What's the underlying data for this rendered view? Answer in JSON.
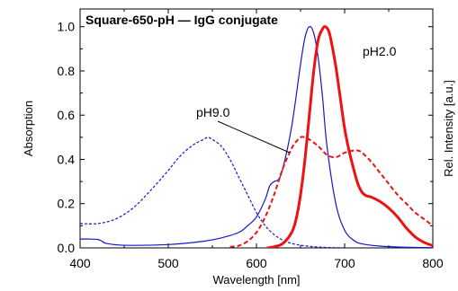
{
  "chart_data": {
    "type": "line",
    "title": "Square-650-pH — IgG conjugate",
    "xlabel": "Wavelength [nm]",
    "ylabel": "Absorption",
    "ylabel_right": "Rel. Intensity [a.u.]",
    "xlim": [
      400,
      800
    ],
    "ylim": [
      0,
      1.08
    ],
    "x_ticks": [
      400,
      500,
      600,
      700,
      800
    ],
    "x_tick_labels": [
      "400",
      "500",
      "600",
      "700",
      "800"
    ],
    "y_ticks": [
      0,
      0.2,
      0.4,
      0.6,
      0.8,
      1.0
    ],
    "y_tick_labels": [
      "0.0",
      "0.2",
      "0.4",
      "0.6",
      "0.8",
      "1.0"
    ],
    "grid": false,
    "annotations": [
      {
        "text": "pH2.0",
        "x": 712,
        "y": 0.955
      },
      {
        "text": "pH9.0",
        "x": 550,
        "y": 0.615
      }
    ],
    "colors": {
      "blue": "#1515cc",
      "red": "#ee1111"
    },
    "series": [
      {
        "key": "abs_ph9",
        "color": "#1515cc",
        "style": "dashed",
        "x": [
          400,
          420,
          440,
          460,
          480,
          500,
          510,
          520,
          530,
          540,
          545,
          550,
          560,
          570,
          580,
          590,
          600,
          610,
          620,
          630,
          640,
          650,
          660,
          670,
          680,
          700
        ],
        "y": [
          0.11,
          0.11,
          0.13,
          0.18,
          0.26,
          0.35,
          0.4,
          0.44,
          0.47,
          0.49,
          0.5,
          0.49,
          0.46,
          0.4,
          0.32,
          0.24,
          0.16,
          0.1,
          0.06,
          0.035,
          0.02,
          0.012,
          0.007,
          0.004,
          0.002,
          0.0
        ]
      },
      {
        "key": "abs_ph2",
        "color": "#1515cc",
        "style": "solid",
        "x": [
          400,
          410,
          420,
          425,
          430,
          450,
          500,
          540,
          560,
          580,
          590,
          600,
          610,
          615,
          620,
          625,
          630,
          640,
          650,
          655,
          660,
          665,
          670,
          675,
          680,
          690,
          700,
          710,
          720,
          740,
          760,
          780,
          800
        ],
        "y": [
          0.04,
          0.04,
          0.038,
          0.03,
          0.02,
          0.012,
          0.015,
          0.03,
          0.045,
          0.07,
          0.1,
          0.14,
          0.22,
          0.28,
          0.3,
          0.31,
          0.36,
          0.55,
          0.83,
          0.95,
          1.0,
          0.97,
          0.86,
          0.68,
          0.46,
          0.2,
          0.08,
          0.035,
          0.018,
          0.008,
          0.004,
          0.002,
          0.001
        ]
      },
      {
        "key": "em_ph9",
        "color": "#ee1111",
        "style": "dashed",
        "x": [
          570,
          580,
          590,
          600,
          610,
          620,
          630,
          640,
          645,
          650,
          655,
          660,
          670,
          680,
          690,
          700,
          710,
          715,
          720,
          730,
          740,
          750,
          760,
          770,
          780,
          790,
          800
        ],
        "y": [
          0.005,
          0.01,
          0.03,
          0.07,
          0.14,
          0.24,
          0.36,
          0.45,
          0.48,
          0.5,
          0.5,
          0.49,
          0.46,
          0.42,
          0.41,
          0.43,
          0.44,
          0.44,
          0.43,
          0.39,
          0.34,
          0.29,
          0.24,
          0.2,
          0.16,
          0.13,
          0.1
        ]
      },
      {
        "key": "em_ph2",
        "color": "#ee1111",
        "style": "solid",
        "x": [
          612,
          620,
          630,
          640,
          645,
          650,
          655,
          660,
          665,
          670,
          675,
          678,
          682,
          685,
          690,
          695,
          700,
          705,
          710,
          715,
          720,
          725,
          730,
          740,
          750,
          760,
          770,
          780,
          790,
          800
        ],
        "y": [
          0.0,
          0.005,
          0.02,
          0.07,
          0.13,
          0.24,
          0.4,
          0.6,
          0.8,
          0.94,
          0.99,
          1.0,
          0.98,
          0.93,
          0.82,
          0.68,
          0.54,
          0.44,
          0.36,
          0.29,
          0.25,
          0.235,
          0.23,
          0.21,
          0.18,
          0.14,
          0.09,
          0.05,
          0.025,
          0.01
        ]
      }
    ]
  }
}
